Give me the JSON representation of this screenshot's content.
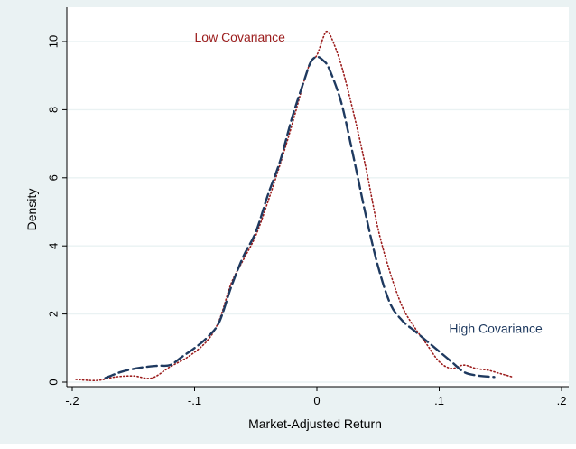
{
  "chart_data": {
    "type": "line",
    "title": "",
    "xlabel": "Market-Adjusted Return",
    "ylabel": "Density",
    "xlim": [
      -0.2,
      0.2
    ],
    "ylim": [
      0,
      10.5
    ],
    "x_ticks": [
      -0.2,
      -0.1,
      0,
      0.1,
      0.2
    ],
    "x_tick_labels": [
      "-.2",
      "-.1",
      "0",
      ".1",
      ".2"
    ],
    "y_ticks": [
      0,
      2,
      4,
      6,
      8,
      10
    ],
    "y_tick_labels": [
      "0",
      "2",
      "4",
      "6",
      "8",
      "10"
    ],
    "grid": true,
    "legend": "none",
    "series": [
      {
        "name": "Low Covariance",
        "color": "#9b1c1c",
        "style": "dotted",
        "points": [
          [
            -0.197,
            0.08
          ],
          [
            -0.18,
            0.05
          ],
          [
            -0.165,
            0.15
          ],
          [
            -0.15,
            0.18
          ],
          [
            -0.135,
            0.12
          ],
          [
            -0.12,
            0.45
          ],
          [
            -0.105,
            0.75
          ],
          [
            -0.09,
            1.2
          ],
          [
            -0.08,
            1.8
          ],
          [
            -0.07,
            2.9
          ],
          [
            -0.06,
            3.6
          ],
          [
            -0.05,
            4.3
          ],
          [
            -0.04,
            5.3
          ],
          [
            -0.03,
            6.4
          ],
          [
            -0.02,
            7.6
          ],
          [
            -0.01,
            8.9
          ],
          [
            -0.005,
            9.4
          ],
          [
            0.0,
            9.6
          ],
          [
            0.005,
            10.1
          ],
          [
            0.008,
            10.3
          ],
          [
            0.012,
            10.1
          ],
          [
            0.02,
            9.3
          ],
          [
            0.03,
            7.9
          ],
          [
            0.04,
            6.3
          ],
          [
            0.05,
            4.5
          ],
          [
            0.06,
            3.2
          ],
          [
            0.07,
            2.2
          ],
          [
            0.08,
            1.6
          ],
          [
            0.09,
            1.1
          ],
          [
            0.1,
            0.6
          ],
          [
            0.11,
            0.4
          ],
          [
            0.12,
            0.5
          ],
          [
            0.13,
            0.4
          ],
          [
            0.14,
            0.35
          ],
          [
            0.15,
            0.25
          ],
          [
            0.16,
            0.15
          ]
        ]
      },
      {
        "name": "High Covariance",
        "color": "#1f3a60",
        "style": "dashed",
        "points": [
          [
            -0.173,
            0.12
          ],
          [
            -0.16,
            0.3
          ],
          [
            -0.145,
            0.42
          ],
          [
            -0.13,
            0.48
          ],
          [
            -0.12,
            0.5
          ],
          [
            -0.11,
            0.75
          ],
          [
            -0.1,
            1.0
          ],
          [
            -0.09,
            1.3
          ],
          [
            -0.08,
            1.75
          ],
          [
            -0.07,
            2.8
          ],
          [
            -0.06,
            3.7
          ],
          [
            -0.05,
            4.4
          ],
          [
            -0.04,
            5.5
          ],
          [
            -0.03,
            6.5
          ],
          [
            -0.02,
            7.8
          ],
          [
            -0.01,
            8.9
          ],
          [
            -0.005,
            9.4
          ],
          [
            0.0,
            9.55
          ],
          [
            0.005,
            9.45
          ],
          [
            0.01,
            9.2
          ],
          [
            0.02,
            8.2
          ],
          [
            0.03,
            6.6
          ],
          [
            0.04,
            4.9
          ],
          [
            0.05,
            3.4
          ],
          [
            0.06,
            2.3
          ],
          [
            0.07,
            1.8
          ],
          [
            0.08,
            1.5
          ],
          [
            0.09,
            1.2
          ],
          [
            0.1,
            0.9
          ],
          [
            0.11,
            0.6
          ],
          [
            0.12,
            0.3
          ],
          [
            0.13,
            0.2
          ],
          [
            0.145,
            0.15
          ]
        ]
      }
    ],
    "annotations": [
      {
        "text": "Low Covariance",
        "x": -0.1,
        "y": 10.0,
        "color": "#9b1c1c",
        "series": 0
      },
      {
        "text": "High Covariance",
        "x": 0.108,
        "y": 1.45,
        "color": "#1f3a60",
        "series": 1
      }
    ]
  },
  "colors": {
    "outer_background": "#eaf2f3",
    "plot_background": "#ffffff",
    "grid": "#eaf2f3",
    "axis": "#000000"
  }
}
